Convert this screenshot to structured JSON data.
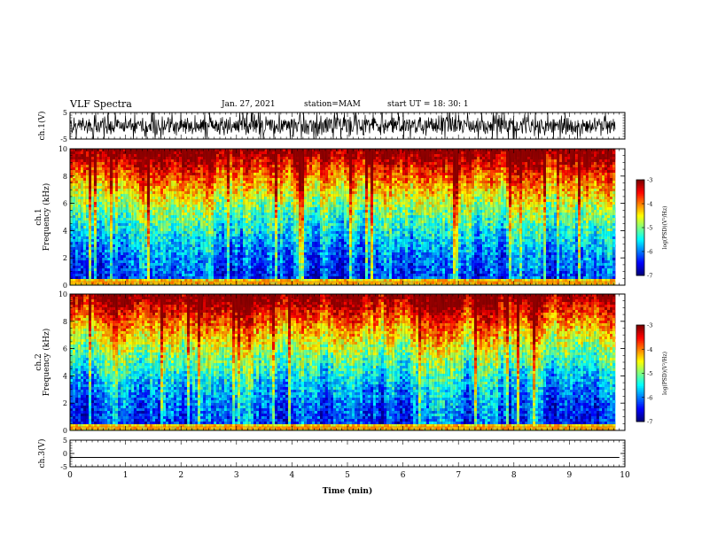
{
  "header": {
    "title": "VLF Spectra",
    "date": "Jan. 27, 2021",
    "station": "station=MAM",
    "start": "start UT =  18: 30: 1"
  },
  "chart_data": [
    {
      "type": "line",
      "panel": "ch1-waveform",
      "ylabel": "ch.1(V)",
      "ylim": [
        -5,
        5
      ],
      "yticks": [
        "5",
        "-5"
      ],
      "xlim": [
        0,
        10
      ],
      "description_of_signal": "dense noisy waveform, amplitude up to about ±5 V",
      "data_extent_min": 9.83
    },
    {
      "type": "heatmap",
      "panel": "ch1-spectrogram",
      "ylabel": "ch.1\nFrequency  (kHz)",
      "ylim": [
        0,
        10
      ],
      "yticks": [
        "0",
        "2",
        "4",
        "6",
        "8",
        "10"
      ],
      "xlim": [
        0,
        10
      ],
      "data_extent_min": 9.83,
      "colorbar": {
        "label": "log(PSD)(V²/Hz)",
        "range": [
          -7,
          -3
        ],
        "ticks": [
          "-3",
          "-4",
          "-5",
          "-6",
          "-7"
        ]
      }
    },
    {
      "type": "heatmap",
      "panel": "ch2-spectrogram",
      "ylabel": "ch.2\nFrequency  (kHz)",
      "ylim": [
        0,
        10
      ],
      "yticks": [
        "0",
        "2",
        "4",
        "6",
        "8",
        "10"
      ],
      "xlim": [
        0,
        10
      ],
      "data_extent_min": 9.83,
      "colorbar": {
        "label": "log(PSD)(V²/Hz)",
        "range": [
          -7,
          -3
        ],
        "ticks": [
          "-3",
          "-4",
          "-5",
          "-6",
          "-7"
        ]
      }
    },
    {
      "type": "line",
      "panel": "ch3-waveform",
      "ylabel": "ch.3(V)",
      "ylim": [
        -5,
        5
      ],
      "yticks": [
        "5",
        "0",
        "-5"
      ],
      "xlim": [
        0,
        10
      ],
      "constant_value": -1.5
    }
  ],
  "xaxis": {
    "label": "Time  (min)",
    "ticks": [
      "0",
      "1",
      "2",
      "3",
      "4",
      "5",
      "6",
      "7",
      "8",
      "9",
      "10"
    ]
  }
}
